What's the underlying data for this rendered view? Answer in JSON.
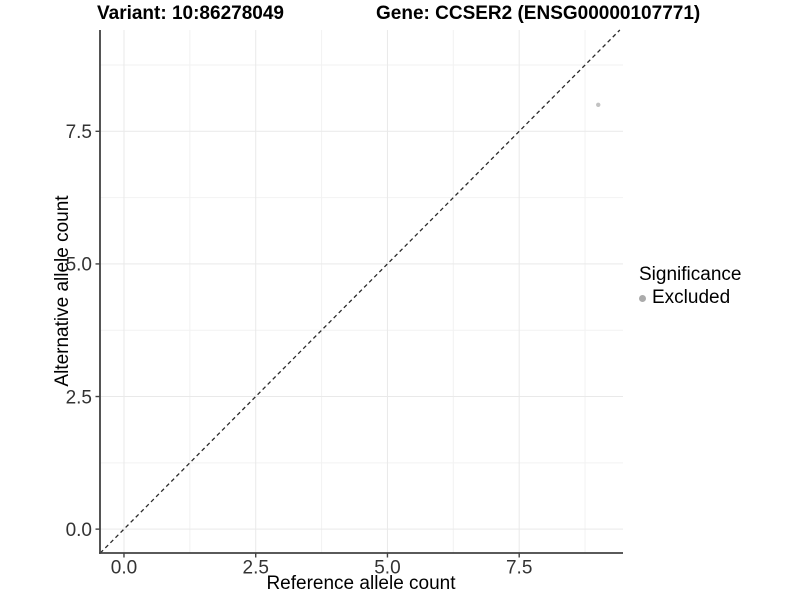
{
  "chart_data": {
    "type": "scatter",
    "titles": {
      "variant": "Variant: 10:86278049",
      "gene": "Gene: CCSER2 (ENSG00000107771)"
    },
    "xlabel": "Reference allele count",
    "ylabel": "Alternative allele count",
    "xlim": [
      -0.455,
      9.47
    ],
    "ylim": [
      -0.45,
      9.41
    ],
    "xticks": {
      "values": [
        0,
        2.5,
        5,
        7.5
      ],
      "labels": [
        "0.0",
        "2.5",
        "5.0",
        "7.5"
      ]
    },
    "yticks": {
      "values": [
        0,
        2.5,
        5,
        7.5
      ],
      "labels": [
        "0.0",
        "2.5",
        "5.0",
        "7.5"
      ]
    },
    "minor_ticks": {
      "x": [
        1.25,
        3.75,
        6.25,
        8.75
      ],
      "y": [
        1.25,
        3.75,
        6.25,
        8.75
      ]
    },
    "grid": {
      "major": true,
      "minor": true,
      "major_color": "#e9e9e9",
      "minor_color": "#f2f2f2"
    },
    "reference_line": {
      "style": "dashed",
      "slope": 1,
      "intercept": 0,
      "color": "#2b2b2b"
    },
    "series": [
      {
        "name": "Excluded",
        "color": "#c2c2c2",
        "points": [
          {
            "x": 9,
            "y": 8
          }
        ]
      }
    ],
    "legend": {
      "title": "Significance",
      "position": "right",
      "entries": [
        {
          "label": "Excluded",
          "color": "#ababab"
        }
      ]
    },
    "axis_color": "#424242",
    "tick_label_color": "#333333"
  }
}
